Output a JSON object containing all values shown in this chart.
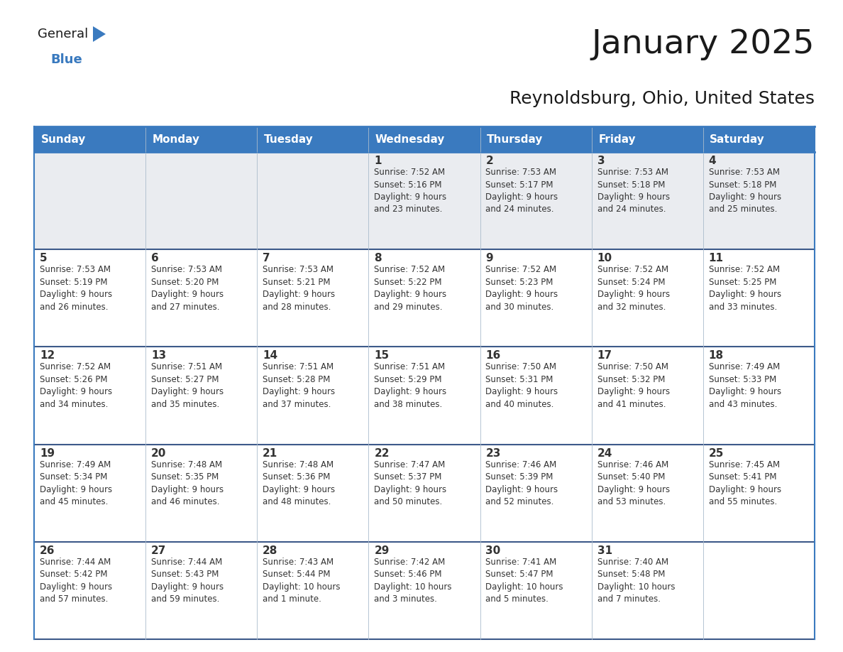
{
  "title": "January 2025",
  "subtitle": "Reynoldsburg, Ohio, United States",
  "header_bg": "#3a7abf",
  "header_text_color": "#ffffff",
  "row1_bg": "#eaecf0",
  "cell_bg_white": "#ffffff",
  "border_color_header": "#3a7abf",
  "border_color_row": "#3d5a8a",
  "border_color_vert": "#aabbcc",
  "text_color": "#333333",
  "day_num_color": "#333333",
  "day_headers": [
    "Sunday",
    "Monday",
    "Tuesday",
    "Wednesday",
    "Thursday",
    "Friday",
    "Saturday"
  ],
  "weeks": [
    [
      {
        "day": "",
        "info": ""
      },
      {
        "day": "",
        "info": ""
      },
      {
        "day": "",
        "info": ""
      },
      {
        "day": "1",
        "info": "Sunrise: 7:52 AM\nSunset: 5:16 PM\nDaylight: 9 hours\nand 23 minutes."
      },
      {
        "day": "2",
        "info": "Sunrise: 7:53 AM\nSunset: 5:17 PM\nDaylight: 9 hours\nand 24 minutes."
      },
      {
        "day": "3",
        "info": "Sunrise: 7:53 AM\nSunset: 5:18 PM\nDaylight: 9 hours\nand 24 minutes."
      },
      {
        "day": "4",
        "info": "Sunrise: 7:53 AM\nSunset: 5:18 PM\nDaylight: 9 hours\nand 25 minutes."
      }
    ],
    [
      {
        "day": "5",
        "info": "Sunrise: 7:53 AM\nSunset: 5:19 PM\nDaylight: 9 hours\nand 26 minutes."
      },
      {
        "day": "6",
        "info": "Sunrise: 7:53 AM\nSunset: 5:20 PM\nDaylight: 9 hours\nand 27 minutes."
      },
      {
        "day": "7",
        "info": "Sunrise: 7:53 AM\nSunset: 5:21 PM\nDaylight: 9 hours\nand 28 minutes."
      },
      {
        "day": "8",
        "info": "Sunrise: 7:52 AM\nSunset: 5:22 PM\nDaylight: 9 hours\nand 29 minutes."
      },
      {
        "day": "9",
        "info": "Sunrise: 7:52 AM\nSunset: 5:23 PM\nDaylight: 9 hours\nand 30 minutes."
      },
      {
        "day": "10",
        "info": "Sunrise: 7:52 AM\nSunset: 5:24 PM\nDaylight: 9 hours\nand 32 minutes."
      },
      {
        "day": "11",
        "info": "Sunrise: 7:52 AM\nSunset: 5:25 PM\nDaylight: 9 hours\nand 33 minutes."
      }
    ],
    [
      {
        "day": "12",
        "info": "Sunrise: 7:52 AM\nSunset: 5:26 PM\nDaylight: 9 hours\nand 34 minutes."
      },
      {
        "day": "13",
        "info": "Sunrise: 7:51 AM\nSunset: 5:27 PM\nDaylight: 9 hours\nand 35 minutes."
      },
      {
        "day": "14",
        "info": "Sunrise: 7:51 AM\nSunset: 5:28 PM\nDaylight: 9 hours\nand 37 minutes."
      },
      {
        "day": "15",
        "info": "Sunrise: 7:51 AM\nSunset: 5:29 PM\nDaylight: 9 hours\nand 38 minutes."
      },
      {
        "day": "16",
        "info": "Sunrise: 7:50 AM\nSunset: 5:31 PM\nDaylight: 9 hours\nand 40 minutes."
      },
      {
        "day": "17",
        "info": "Sunrise: 7:50 AM\nSunset: 5:32 PM\nDaylight: 9 hours\nand 41 minutes."
      },
      {
        "day": "18",
        "info": "Sunrise: 7:49 AM\nSunset: 5:33 PM\nDaylight: 9 hours\nand 43 minutes."
      }
    ],
    [
      {
        "day": "19",
        "info": "Sunrise: 7:49 AM\nSunset: 5:34 PM\nDaylight: 9 hours\nand 45 minutes."
      },
      {
        "day": "20",
        "info": "Sunrise: 7:48 AM\nSunset: 5:35 PM\nDaylight: 9 hours\nand 46 minutes."
      },
      {
        "day": "21",
        "info": "Sunrise: 7:48 AM\nSunset: 5:36 PM\nDaylight: 9 hours\nand 48 minutes."
      },
      {
        "day": "22",
        "info": "Sunrise: 7:47 AM\nSunset: 5:37 PM\nDaylight: 9 hours\nand 50 minutes."
      },
      {
        "day": "23",
        "info": "Sunrise: 7:46 AM\nSunset: 5:39 PM\nDaylight: 9 hours\nand 52 minutes."
      },
      {
        "day": "24",
        "info": "Sunrise: 7:46 AM\nSunset: 5:40 PM\nDaylight: 9 hours\nand 53 minutes."
      },
      {
        "day": "25",
        "info": "Sunrise: 7:45 AM\nSunset: 5:41 PM\nDaylight: 9 hours\nand 55 minutes."
      }
    ],
    [
      {
        "day": "26",
        "info": "Sunrise: 7:44 AM\nSunset: 5:42 PM\nDaylight: 9 hours\nand 57 minutes."
      },
      {
        "day": "27",
        "info": "Sunrise: 7:44 AM\nSunset: 5:43 PM\nDaylight: 9 hours\nand 59 minutes."
      },
      {
        "day": "28",
        "info": "Sunrise: 7:43 AM\nSunset: 5:44 PM\nDaylight: 10 hours\nand 1 minute."
      },
      {
        "day": "29",
        "info": "Sunrise: 7:42 AM\nSunset: 5:46 PM\nDaylight: 10 hours\nand 3 minutes."
      },
      {
        "day": "30",
        "info": "Sunrise: 7:41 AM\nSunset: 5:47 PM\nDaylight: 10 hours\nand 5 minutes."
      },
      {
        "day": "31",
        "info": "Sunrise: 7:40 AM\nSunset: 5:48 PM\nDaylight: 10 hours\nand 7 minutes."
      },
      {
        "day": "",
        "info": ""
      }
    ]
  ],
  "logo_text_general": "General",
  "logo_text_blue": "Blue",
  "logo_color_general": "#1a1a1a",
  "logo_color_blue": "#3a7abf",
  "logo_triangle_color": "#3a7abf",
  "title_fontsize": 34,
  "subtitle_fontsize": 18,
  "header_fontsize": 11,
  "daynum_fontsize": 11,
  "info_fontsize": 8.5
}
